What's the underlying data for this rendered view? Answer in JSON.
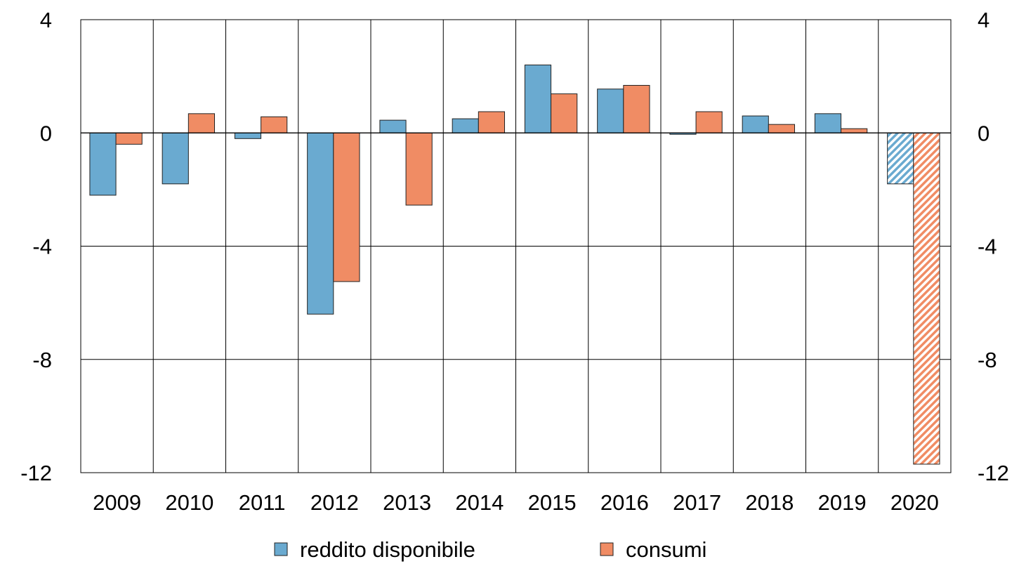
{
  "chart_data": {
    "type": "bar",
    "title": "",
    "xlabel": "",
    "ylabel": "",
    "categories": [
      "2009",
      "2010",
      "2011",
      "2012",
      "2013",
      "2014",
      "2015",
      "2016",
      "2017",
      "2018",
      "2019",
      "2020"
    ],
    "series": [
      {
        "name": "reddito disponibile",
        "color": "#6aaad0",
        "values": [
          -2.2,
          -1.8,
          -0.2,
          -6.4,
          0.45,
          0.5,
          2.4,
          1.55,
          -0.05,
          0.6,
          0.68,
          -1.8
        ]
      },
      {
        "name": "consumi",
        "color": "#f08c64",
        "values": [
          -0.4,
          0.68,
          0.57,
          -5.25,
          -2.55,
          0.75,
          1.38,
          1.68,
          0.75,
          0.3,
          0.15,
          -11.7
        ]
      }
    ],
    "hatched_categories": [
      "2020"
    ],
    "ylim": [
      -12,
      4
    ],
    "yticks": [
      4,
      0,
      -4,
      -8,
      -12
    ],
    "ytick_labels": [
      "4",
      "0",
      "-4",
      "-8",
      "-12"
    ],
    "grid": true,
    "legend_placement": "bottom-center",
    "right_axis_mirrored": true
  }
}
